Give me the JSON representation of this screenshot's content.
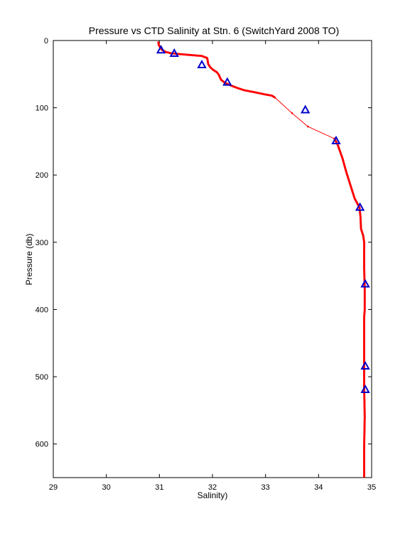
{
  "chart_data": {
    "type": "scatter",
    "title": "Pressure vs CTD Salinity at Stn. 6 (SwitchYard 2008 TO)",
    "xlabel": "Salinity)",
    "ylabel": "Pressure (db)",
    "xlim": [
      29,
      35
    ],
    "ylim": [
      0,
      650
    ],
    "y_reversed": true,
    "x_ticks": [
      "29",
      "30",
      "31",
      "32",
      "33",
      "34",
      "35"
    ],
    "y_ticks": [
      "0",
      "100",
      "200",
      "300",
      "400",
      "500",
      "600"
    ],
    "grid": false,
    "series": [
      {
        "style": "line-dots",
        "color": "#ff0000",
        "points": [
          [
            30.98,
            3
          ],
          [
            30.99,
            7
          ],
          [
            31.02,
            11
          ],
          [
            31.05,
            14
          ],
          [
            31.12,
            17
          ],
          [
            31.22,
            19
          ],
          [
            31.35,
            20
          ],
          [
            31.5,
            21
          ],
          [
            31.65,
            22
          ],
          [
            31.8,
            23
          ],
          [
            31.9,
            26
          ],
          [
            31.91,
            30
          ],
          [
            31.92,
            35
          ],
          [
            31.96,
            40
          ],
          [
            32.02,
            44
          ],
          [
            32.08,
            47
          ],
          [
            32.12,
            51
          ],
          [
            32.14,
            55
          ],
          [
            32.17,
            59
          ],
          [
            32.24,
            63
          ],
          [
            32.32,
            66
          ],
          [
            32.45,
            70
          ],
          [
            32.6,
            74
          ],
          [
            32.8,
            77
          ],
          [
            32.98,
            80
          ],
          [
            33.12,
            82
          ],
          [
            33.18,
            85
          ],
          [
            33.5,
            108
          ],
          [
            33.8,
            128
          ],
          [
            34.3,
            146
          ],
          [
            34.36,
            155
          ],
          [
            34.45,
            175
          ],
          [
            34.52,
            195
          ],
          [
            34.6,
            215
          ],
          [
            34.68,
            235
          ],
          [
            34.77,
            248
          ],
          [
            34.79,
            262
          ],
          [
            34.8,
            280
          ],
          [
            34.84,
            290
          ],
          [
            34.86,
            300
          ],
          [
            34.86,
            340
          ],
          [
            34.87,
            370
          ],
          [
            34.87,
            400
          ],
          [
            34.86,
            410
          ],
          [
            34.86,
            460
          ],
          [
            34.86,
            520
          ],
          [
            34.87,
            560
          ],
          [
            34.86,
            600
          ],
          [
            34.86,
            650
          ]
        ]
      },
      {
        "style": "triangle-markers",
        "color": "#0000cc",
        "points": [
          [
            31.03,
            14
          ],
          [
            31.28,
            19
          ],
          [
            31.8,
            36
          ],
          [
            32.28,
            62
          ],
          [
            33.75,
            103
          ],
          [
            34.33,
            149
          ],
          [
            34.78,
            248
          ],
          [
            34.88,
            362
          ],
          [
            34.88,
            484
          ],
          [
            34.88,
            519
          ]
        ]
      }
    ]
  }
}
